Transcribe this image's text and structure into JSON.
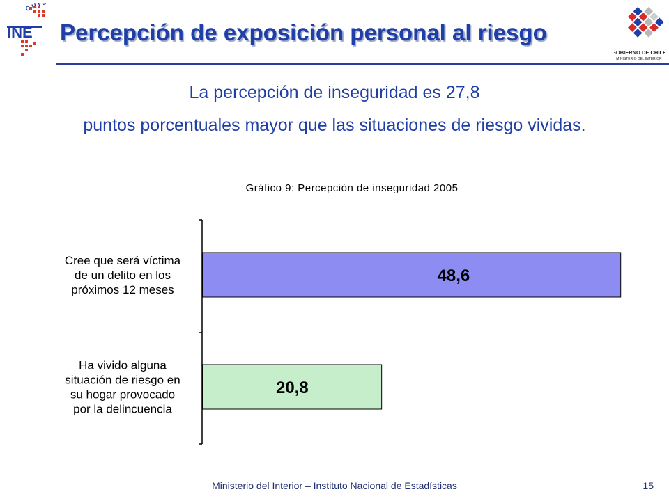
{
  "header": {
    "title": "Percepción de exposición personal al riesgo",
    "ine_logo": {
      "icon": "ine-logo",
      "text": "INE",
      "arc_text": "CHILE"
    },
    "gov_logo": {
      "icon": "gobierno-de-chile-logo",
      "line1": "GOBIERNO DE CHILE",
      "line2": "MINISTERIO DEL INTERIOR"
    }
  },
  "subtitle": {
    "line1": "La percepción de inseguridad es 27,8",
    "line2": "puntos porcentuales mayor que las situaciones de riesgo vividas."
  },
  "chart_data": {
    "type": "bar",
    "orientation": "horizontal",
    "title": "Gráfico 9: Percepción de inseguridad 2005",
    "categories": [
      [
        "Cree que será víctima",
        "de un delito en los",
        "próximos 12 meses"
      ],
      [
        "Ha vivido alguna",
        "situación de riesgo en",
        "su hogar provocado",
        "por la delincuencia"
      ]
    ],
    "values": [
      48.6,
      20.8
    ],
    "value_labels": [
      "48,6",
      "20,8"
    ],
    "xlim": [
      0,
      50
    ],
    "grid": false,
    "colors": [
      "#8c8cf2",
      "#c6eecb"
    ]
  },
  "footer": {
    "text": "Ministerio del Interior – Instituto Nacional de Estadísticas",
    "page_number": "15"
  }
}
